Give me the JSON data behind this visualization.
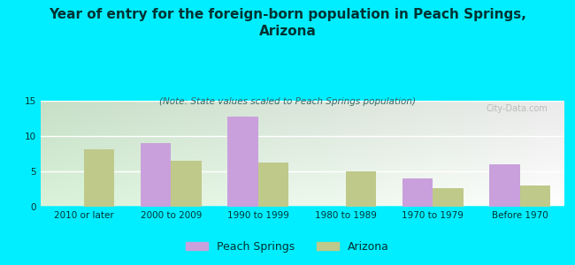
{
  "title": "Year of entry for the foreign-born population in Peach Springs,\nArizona",
  "subtitle": "(Note: State values scaled to Peach Springs population)",
  "categories": [
    "2010 or later",
    "2000 to 2009",
    "1990 to 1999",
    "1980 to 1989",
    "1970 to 1979",
    "Before 1970"
  ],
  "peach_springs": [
    0,
    9.0,
    12.7,
    0,
    4.0,
    6.0
  ],
  "arizona": [
    8.1,
    6.5,
    6.2,
    5.0,
    2.6,
    3.0
  ],
  "peach_springs_color": "#c9a0dc",
  "arizona_color": "#bfc98a",
  "background_color": "#00eeff",
  "ylim": [
    0,
    15
  ],
  "yticks": [
    0,
    5,
    10,
    15
  ],
  "bar_width": 0.35,
  "title_fontsize": 11,
  "title_color": "#003333",
  "subtitle_fontsize": 7.5,
  "subtitle_color": "#336666",
  "legend_fontsize": 9,
  "tick_fontsize": 7.5,
  "tick_color": "#003333",
  "watermark": "City-Data.com"
}
